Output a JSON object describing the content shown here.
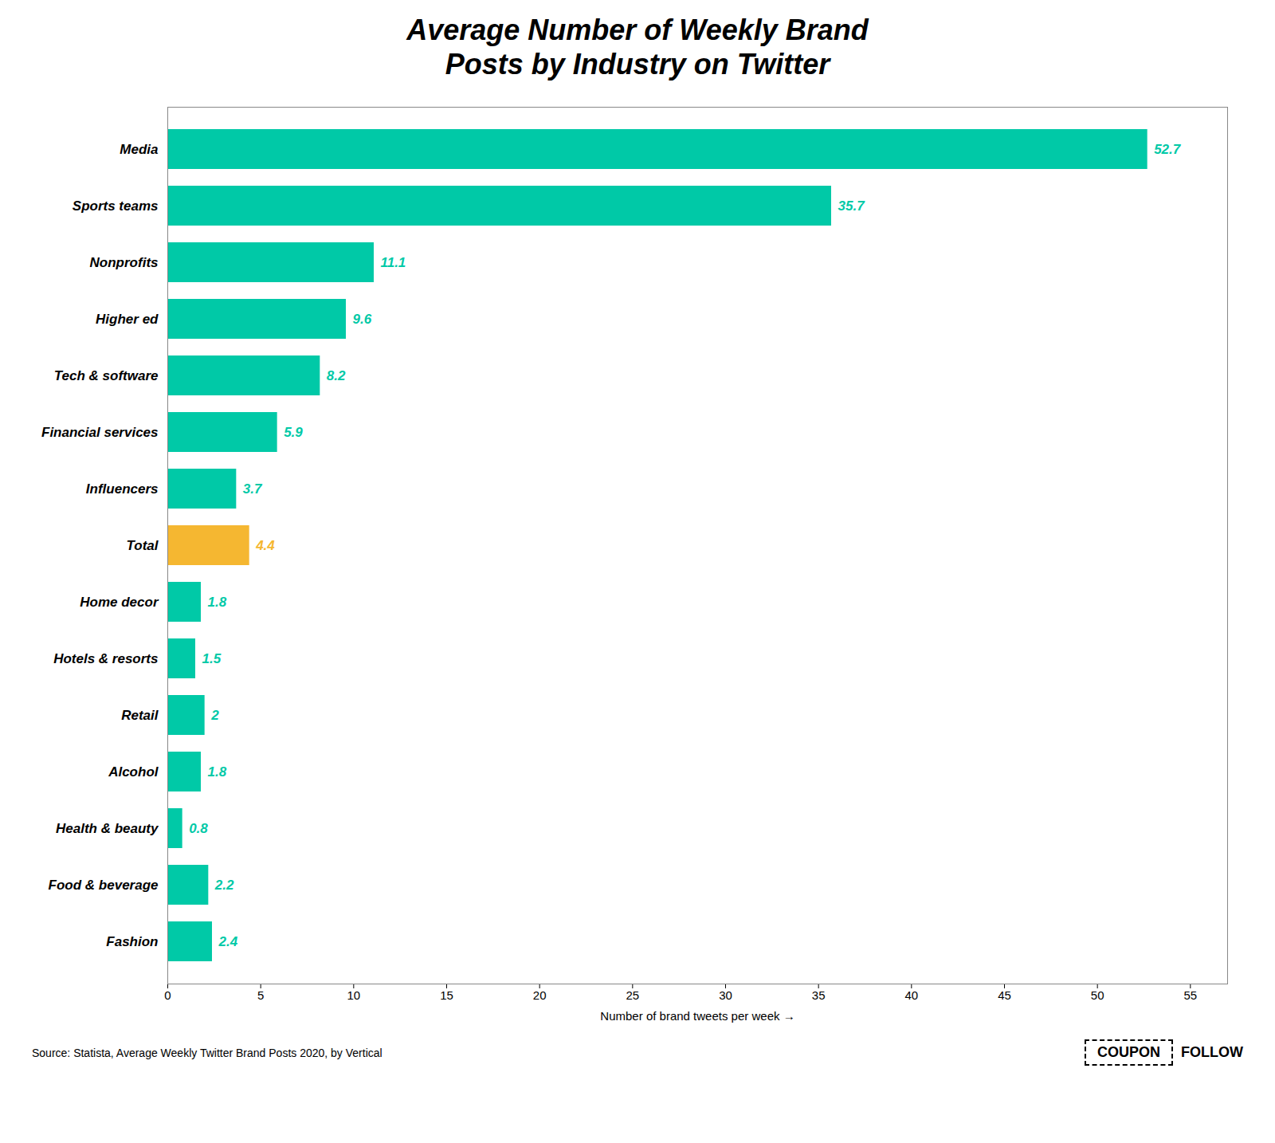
{
  "chart_data": {
    "type": "bar",
    "orientation": "horizontal",
    "title": "Average Number of Weekly Brand\nPosts by Industry on Twitter",
    "categories": [
      "Media",
      "Sports teams",
      "Nonprofits",
      "Higher ed",
      "Tech & software",
      "Financial services",
      "Influencers",
      "Total",
      "Home decor",
      "Hotels & resorts",
      "Retail",
      "Alcohol",
      "Health & beauty",
      "Food & beverage",
      "Fashion"
    ],
    "values": [
      52.7,
      35.7,
      11.1,
      9.6,
      8.2,
      5.9,
      3.7,
      4.4,
      1.8,
      1.5,
      2.0,
      1.8,
      0.8,
      2.2,
      2.4
    ],
    "colors": [
      "#00c9a7",
      "#00c9a7",
      "#00c9a7",
      "#00c9a7",
      "#00c9a7",
      "#00c9a7",
      "#00c9a7",
      "#f5b731",
      "#00c9a7",
      "#00c9a7",
      "#00c9a7",
      "#00c9a7",
      "#00c9a7",
      "#00c9a7",
      "#00c9a7"
    ],
    "xlabel": "Number of brand tweets per week",
    "xlim": [
      0,
      57
    ],
    "xticks": [
      0,
      5,
      10,
      15,
      20,
      25,
      30,
      35,
      40,
      45,
      50,
      55
    ],
    "data_labels": true,
    "grid": false,
    "annotations": [
      "Source: Statista, Average Weekly Twitter Brand Posts 2020, by Vertical",
      "COUPON",
      "FOLLOW"
    ]
  }
}
